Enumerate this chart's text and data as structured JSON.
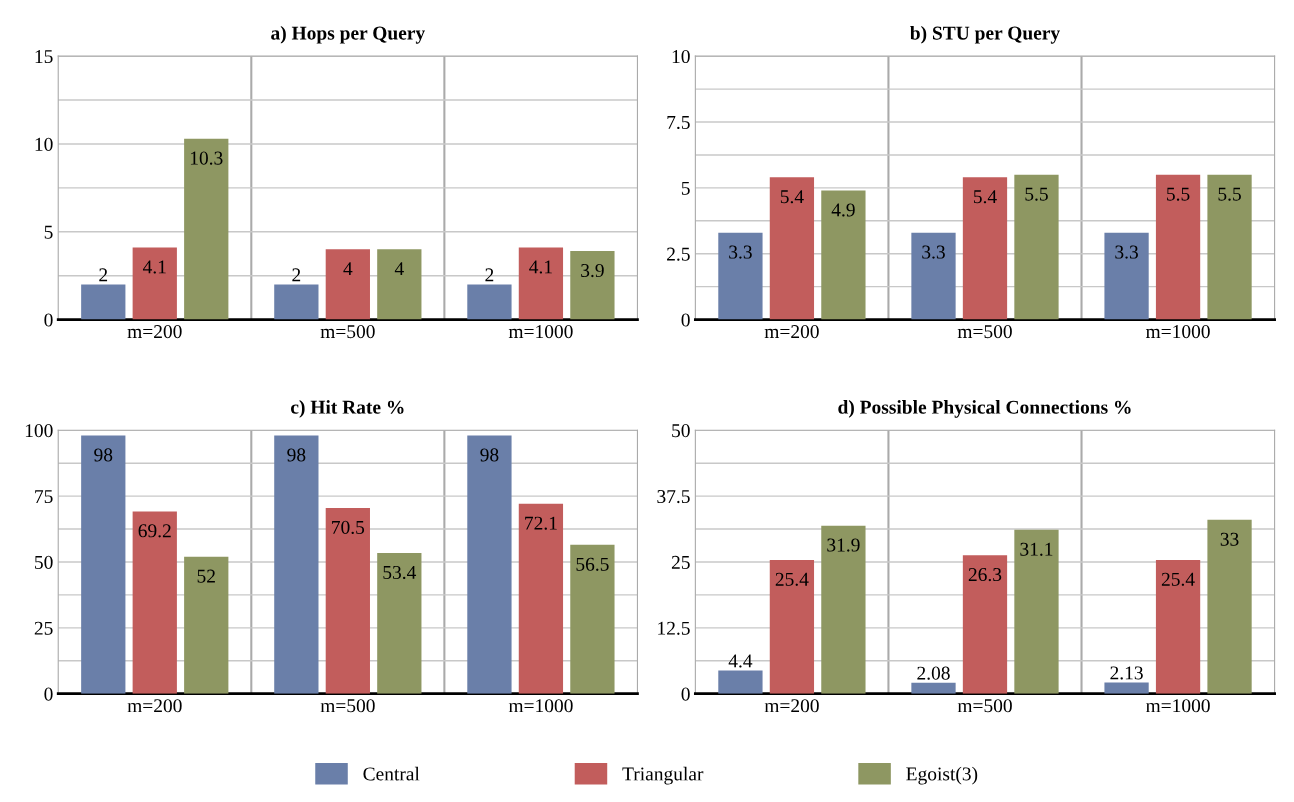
{
  "chart_data": [
    {
      "type": "bar",
      "title": "a) Hops per Query",
      "categories": [
        "m=200",
        "m=500",
        "m=1000"
      ],
      "ylim": [
        0,
        15
      ],
      "yticks": [
        0,
        {
          "value": 2.5,
          "label": null
        },
        5,
        {
          "value": 7.5,
          "label": null
        },
        10,
        {
          "value": 12.5,
          "label": null
        },
        15
      ],
      "grid": true,
      "data_labels": true,
      "legend": "bottom",
      "series": [
        {
          "name": "Central",
          "color": "#6a7fa9",
          "values": [
            2,
            2,
            2
          ]
        },
        {
          "name": "Triangular",
          "color": "#c25d5c",
          "values": [
            4.1,
            4,
            4.1
          ]
        },
        {
          "name": "Egoist(3)",
          "color": "#8e9762",
          "values": [
            10.3,
            4,
            3.9
          ]
        }
      ]
    },
    {
      "type": "bar",
      "title": "b) STU per Query",
      "categories": [
        "m=200",
        "m=500",
        "m=1000"
      ],
      "ylim": [
        0,
        10
      ],
      "yticks": [
        0,
        {
          "value": 1.25,
          "label": null
        },
        2.5,
        {
          "value": 3.75,
          "label": null
        },
        5,
        {
          "value": 6.25,
          "label": null
        },
        7.5,
        {
          "value": 8.75,
          "label": null
        },
        10
      ],
      "grid": true,
      "data_labels": true,
      "series": [
        {
          "color": "#6a7fa9",
          "values": [
            3.3,
            3.3,
            3.3
          ]
        },
        {
          "color": "#c25d5c",
          "values": [
            5.4,
            5.4,
            5.5
          ]
        },
        {
          "color": "#8e9762",
          "values": [
            4.9,
            5.5,
            5.5
          ]
        }
      ]
    },
    {
      "type": "bar",
      "title": "c) Hit Rate %",
      "categories": [
        "m=200",
        "m=500",
        "m=1000"
      ],
      "ylim": [
        0,
        100
      ],
      "yticks": [
        0,
        {
          "value": 12.5,
          "label": null
        },
        25,
        {
          "value": 37.5,
          "label": null
        },
        50,
        {
          "value": 62.5,
          "label": null
        },
        75,
        {
          "value": 87.5,
          "label": null
        },
        100
      ],
      "grid": true,
      "data_labels": true,
      "series": [
        {
          "color": "#6a7fa9",
          "values": [
            98,
            98,
            98
          ]
        },
        {
          "color": "#c25d5c",
          "values": [
            69.2,
            70.5,
            72.1
          ]
        },
        {
          "color": "#8e9762",
          "values": [
            52,
            53.4,
            56.5
          ]
        }
      ]
    },
    {
      "type": "bar",
      "title": "d) Possible Physical Connections %",
      "categories": [
        "m=200",
        "m=500",
        "m=1000"
      ],
      "ylim": [
        0,
        50
      ],
      "yticks": [
        0,
        {
          "value": 6.25,
          "label": null
        },
        12.5,
        {
          "value": 18.75,
          "label": null
        },
        25,
        {
          "value": 31.25,
          "label": null
        },
        37.5,
        {
          "value": 43.75,
          "label": null
        },
        50
      ],
      "grid": true,
      "data_labels": true,
      "series": [
        {
          "color": "#6a7fa9",
          "values": [
            4.4,
            2.08,
            2.13
          ]
        },
        {
          "color": "#c25d5c",
          "values": [
            25.4,
            26.3,
            25.4
          ]
        },
        {
          "color": "#8e9762",
          "values": [
            31.9,
            31.1,
            33
          ]
        }
      ]
    }
  ]
}
